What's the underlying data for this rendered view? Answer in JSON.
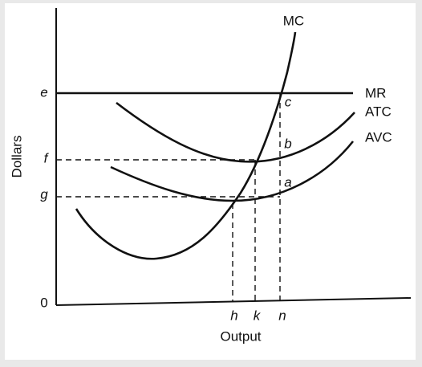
{
  "axes": {
    "y_label": "Dollars",
    "x_label": "Output",
    "origin": "0"
  },
  "price_levels": [
    "e",
    "f",
    "g"
  ],
  "quantities": [
    "h",
    "k",
    "n"
  ],
  "curves": [
    "MC",
    "MR",
    "ATC",
    "AVC"
  ],
  "points": [
    "c",
    "b",
    "a"
  ]
}
